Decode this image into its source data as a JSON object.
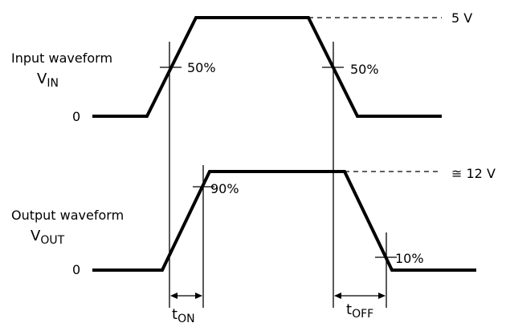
{
  "input": {
    "title": "Input waveform",
    "symbol": "V",
    "symbol_sub": "IN",
    "zero_label": "0",
    "level_label": "5 V",
    "rise_mark_label": "50%",
    "fall_mark_label": "50%"
  },
  "output": {
    "title": "Output waveform",
    "symbol": "V",
    "symbol_sub": "OUT",
    "zero_label": "0",
    "level_label": "≅  12 V",
    "rise_mark_label": "90%",
    "fall_mark_label": "10%"
  },
  "timing": {
    "t_on_symbol": "t",
    "t_on_sub": "ON",
    "t_off_symbol": "t",
    "t_off_sub": "OFF"
  }
}
